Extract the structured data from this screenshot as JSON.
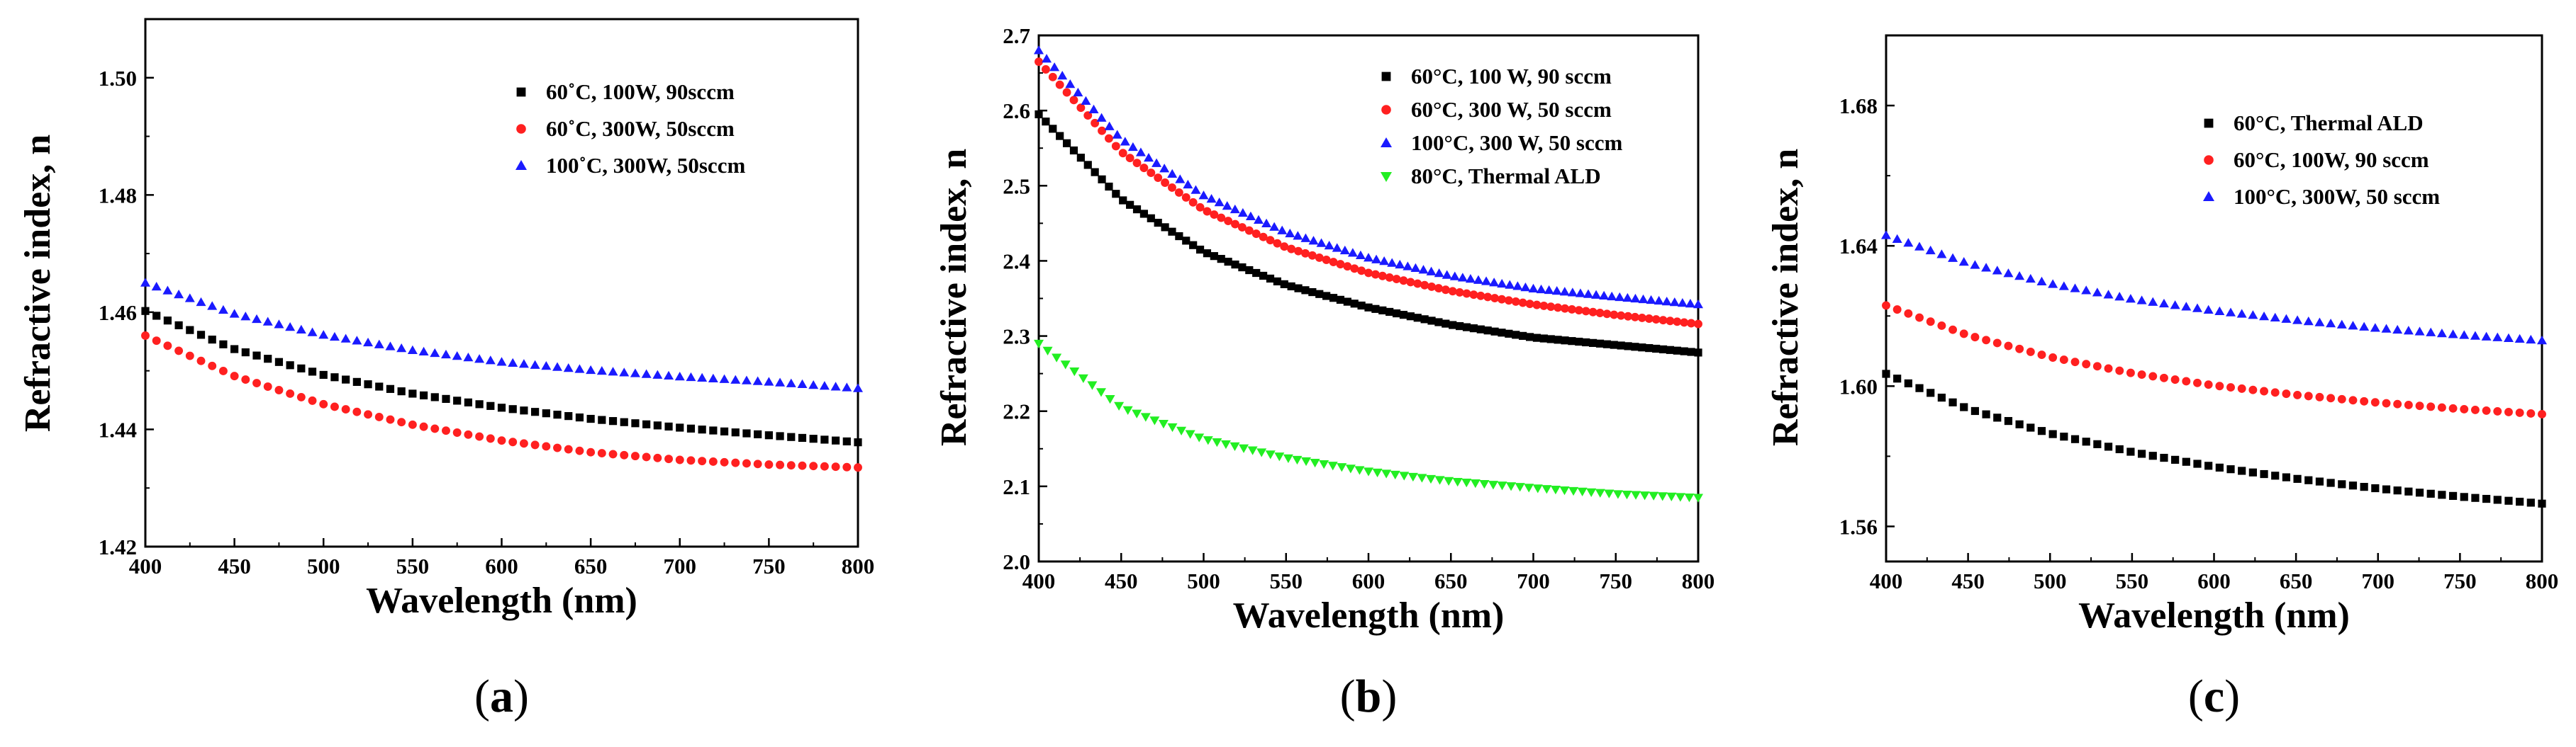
{
  "chart_data": [
    {
      "panel_label": "(a)",
      "panel_letter": "a",
      "type": "scatter",
      "xlabel": "Wavelength (nm)",
      "ylabel": "Refractive index, n",
      "xlim": [
        400,
        800
      ],
      "ylim": [
        1.42,
        1.51
      ],
      "xticks": [
        400,
        450,
        500,
        550,
        600,
        650,
        700,
        750,
        800
      ],
      "yticks": [
        1.42,
        1.44,
        1.46,
        1.48,
        1.5
      ],
      "ytick_decimals": 2,
      "legend_position": "top-right",
      "series": [
        {
          "name": "60˚C, 100W, 90sccm",
          "marker": "square",
          "color": "#000000",
          "x_start": 400,
          "x_end": 800,
          "n_points": 65,
          "points": [
            [
              400,
              1.4602
            ],
            [
              450,
              1.4537
            ],
            [
              500,
              1.4493
            ],
            [
              550,
              1.4461
            ],
            [
              600,
              1.4437
            ],
            [
              650,
              1.4418
            ],
            [
              700,
              1.4403
            ],
            [
              750,
              1.439
            ],
            [
              800,
              1.4378
            ]
          ]
        },
        {
          "name": "60˚C, 300W, 50sccm",
          "marker": "circle",
          "color": "#ff2020",
          "x_start": 400,
          "x_end": 800,
          "n_points": 65,
          "points": [
            [
              400,
              1.456
            ],
            [
              450,
              1.4491
            ],
            [
              500,
              1.4443
            ],
            [
              550,
              1.4408
            ],
            [
              600,
              1.4381
            ],
            [
              650,
              1.4361
            ],
            [
              700,
              1.4348
            ],
            [
              750,
              1.434
            ],
            [
              800,
              1.4335
            ]
          ]
        },
        {
          "name": "100˚C, 300W, 50sccm",
          "marker": "triangle-up",
          "color": "#1a1aff",
          "x_start": 400,
          "x_end": 800,
          "n_points": 65,
          "points": [
            [
              400,
              1.465
            ],
            [
              450,
              1.4597
            ],
            [
              500,
              1.4561
            ],
            [
              550,
              1.4535
            ],
            [
              600,
              1.4515
            ],
            [
              650,
              1.4501
            ],
            [
              700,
              1.449
            ],
            [
              750,
              1.4481
            ],
            [
              800,
              1.447
            ]
          ]
        }
      ]
    },
    {
      "panel_label": "(b)",
      "panel_letter": "b",
      "type": "scatter",
      "xlabel": "Wavelength (nm)",
      "ylabel": "Refractive index, n",
      "xlim": [
        400,
        800
      ],
      "ylim": [
        2.0,
        2.7
      ],
      "xticks": [
        400,
        450,
        500,
        550,
        600,
        650,
        700,
        750,
        800
      ],
      "yticks": [
        2.0,
        2.1,
        2.2,
        2.3,
        2.4,
        2.5,
        2.6,
        2.7
      ],
      "ytick_decimals": 1,
      "legend_position": "top-right",
      "series": [
        {
          "name": "60°C, 100 W, 90 sccm",
          "marker": "square",
          "color": "#000000",
          "x_start": 400,
          "x_end": 800,
          "n_points": 95,
          "points": [
            [
              400,
              2.595
            ],
            [
              450,
              2.482
            ],
            [
              500,
              2.412
            ],
            [
              550,
              2.368
            ],
            [
              600,
              2.338
            ],
            [
              650,
              2.315
            ],
            [
              700,
              2.298
            ],
            [
              750,
              2.288
            ],
            [
              800,
              2.278
            ]
          ]
        },
        {
          "name": "60°C, 300 W, 50 sccm",
          "marker": "circle",
          "color": "#ff2020",
          "x_start": 400,
          "x_end": 800,
          "n_points": 95,
          "points": [
            [
              400,
              2.665
            ],
            [
              450,
              2.545
            ],
            [
              500,
              2.468
            ],
            [
              550,
              2.418
            ],
            [
              600,
              2.384
            ],
            [
              650,
              2.36
            ],
            [
              700,
              2.342
            ],
            [
              750,
              2.328
            ],
            [
              800,
              2.316
            ]
          ]
        },
        {
          "name": "100°C, 300 W, 50 sccm",
          "marker": "triangle-up",
          "color": "#1a1aff",
          "x_start": 400,
          "x_end": 800,
          "n_points": 85,
          "points": [
            [
              400,
              2.68
            ],
            [
              450,
              2.562
            ],
            [
              500,
              2.487
            ],
            [
              550,
              2.438
            ],
            [
              600,
              2.404
            ],
            [
              650,
              2.38
            ],
            [
              700,
              2.363
            ],
            [
              750,
              2.352
            ],
            [
              800,
              2.342
            ]
          ]
        },
        {
          "name": "80°C, Thermal ALD",
          "marker": "triangle-down",
          "color": "#22ee22",
          "x_start": 400,
          "x_end": 800,
          "n_points": 75,
          "points": [
            [
              400,
              2.29
            ],
            [
              450,
              2.205
            ],
            [
              500,
              2.163
            ],
            [
              550,
              2.138
            ],
            [
              600,
              2.12
            ],
            [
              650,
              2.107
            ],
            [
              700,
              2.098
            ],
            [
              750,
              2.09
            ],
            [
              800,
              2.085
            ]
          ]
        }
      ]
    },
    {
      "panel_label": "(c)",
      "panel_letter": "c",
      "type": "scatter",
      "xlabel": "Wavelength (nm)",
      "ylabel": "Refractive index, n",
      "xlim": [
        400,
        800
      ],
      "ylim": [
        1.55,
        1.7
      ],
      "xticks": [
        400,
        450,
        500,
        550,
        600,
        650,
        700,
        750,
        800
      ],
      "yticks": [
        1.56,
        1.6,
        1.64,
        1.68
      ],
      "ytick_decimals": 2,
      "legend_position": "top-right",
      "series": [
        {
          "name": "60°C, Thermal ALD",
          "marker": "square",
          "color": "#000000",
          "x_start": 400,
          "x_end": 800,
          "n_points": 60,
          "points": [
            [
              400,
              1.6035
            ],
            [
              450,
              1.5935
            ],
            [
              500,
              1.5865
            ],
            [
              550,
              1.5812
            ],
            [
              600,
              1.577
            ],
            [
              650,
              1.5736
            ],
            [
              700,
              1.5708
            ],
            [
              750,
              1.5685
            ],
            [
              800,
              1.5665
            ]
          ]
        },
        {
          "name": "60°C, 100W, 90 sccm",
          "marker": "circle",
          "color": "#ff2020",
          "x_start": 400,
          "x_end": 800,
          "n_points": 60,
          "points": [
            [
              400,
              1.623
            ],
            [
              450,
              1.6145
            ],
            [
              500,
              1.6083
            ],
            [
              550,
              1.6037
            ],
            [
              600,
              1.6002
            ],
            [
              650,
              1.5975
            ],
            [
              700,
              1.5953
            ],
            [
              750,
              1.5935
            ],
            [
              800,
              1.592
            ]
          ]
        },
        {
          "name": "100°C, 300W, 50 sccm",
          "marker": "triangle-up",
          "color": "#1a1aff",
          "x_start": 400,
          "x_end": 800,
          "n_points": 60,
          "points": [
            [
              400,
              1.643
            ],
            [
              450,
              1.635
            ],
            [
              500,
              1.6292
            ],
            [
              550,
              1.6248
            ],
            [
              600,
              1.6215
            ],
            [
              650,
              1.6188
            ],
            [
              700,
              1.6165
            ],
            [
              750,
              1.6146
            ],
            [
              800,
              1.613
            ]
          ]
        }
      ]
    }
  ]
}
